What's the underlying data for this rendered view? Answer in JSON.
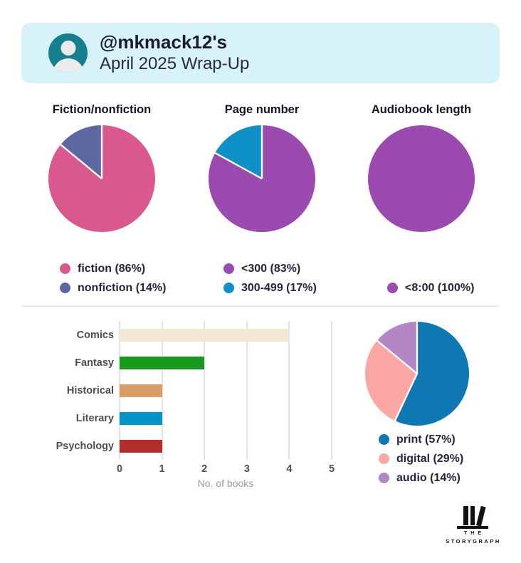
{
  "header": {
    "username_line": "@mkmack12's",
    "subtitle": "April 2025 Wrap-Up",
    "avatar_icon": "user-avatar-icon",
    "background_color": "#d7f3f9",
    "avatar_color": "#15808d"
  },
  "colors": {
    "text_dark": "#232233",
    "axis_label_gray": "#4d4d4d",
    "muted_gray": "#9a9a9a",
    "gridline": "#e4e4e4",
    "divider": "#eaeaea"
  },
  "chart_data": [
    {
      "key": "fiction_nonfiction",
      "type": "pie",
      "title": "Fiction/nonfiction",
      "legend_position": "below",
      "slices": [
        {
          "label": "fiction",
          "pct": 86,
          "color": "#d9598f",
          "legend": "fiction (86%)"
        },
        {
          "label": "nonfiction",
          "pct": 14,
          "color": "#5c66a0",
          "legend": "nonfiction (14%)"
        }
      ]
    },
    {
      "key": "page_number",
      "type": "pie",
      "title": "Page number",
      "legend_position": "below",
      "slices": [
        {
          "label": "<300",
          "pct": 83,
          "color": "#9b4ab0",
          "legend": "<300 (83%)"
        },
        {
          "label": "300-499",
          "pct": 17,
          "color": "#0e90c8",
          "legend": "300-499 (17%)"
        }
      ]
    },
    {
      "key": "audiobook_length",
      "type": "pie",
      "title": "Audiobook length",
      "legend_position": "below",
      "slices": [
        {
          "label": "<8:00",
          "pct": 100,
          "color": "#9b4ab0",
          "legend": "<8:00 (100%)"
        }
      ]
    },
    {
      "key": "genres",
      "type": "bar",
      "orientation": "horizontal",
      "categories": [
        "Comics",
        "Fantasy",
        "Historical",
        "Literary",
        "Psychology"
      ],
      "values": [
        4,
        2,
        1,
        1,
        1
      ],
      "colors": [
        "#f2e8d2",
        "#179a1c",
        "#d99c67",
        "#0095c4",
        "#b52c2c"
      ],
      "title": "",
      "xlabel": "No. of books",
      "ylabel": "",
      "xlim": [
        0,
        5
      ],
      "xticks": [
        0,
        1,
        2,
        3,
        4,
        5
      ],
      "grid": true
    },
    {
      "key": "format",
      "type": "pie",
      "title": "",
      "legend_position": "below",
      "slices": [
        {
          "label": "print",
          "pct": 57,
          "color": "#0d78b4",
          "legend": "print (57%)"
        },
        {
          "label": "digital",
          "pct": 29,
          "color": "#fba7a4",
          "legend": "digital (29%)"
        },
        {
          "label": "audio",
          "pct": 14,
          "color": "#b287c4",
          "legend": "audio (14%)"
        }
      ]
    }
  ],
  "logo": {
    "icon": "storygraph-books-icon",
    "line1": "THE",
    "line2": "STORYGRAPH"
  }
}
